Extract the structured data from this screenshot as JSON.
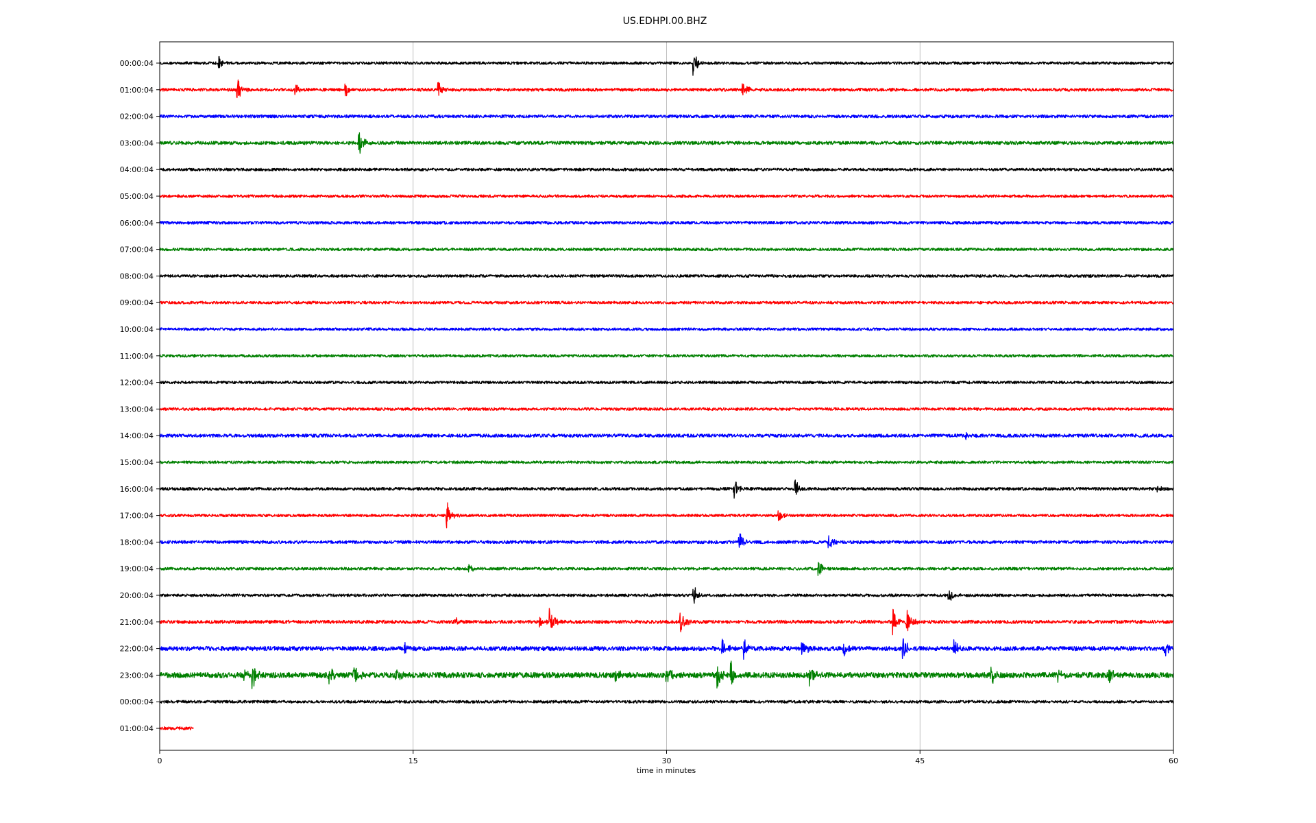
{
  "chart_data": {
    "type": "line",
    "title": "US.EDHPI.00.BHZ",
    "xlabel": "time in minutes",
    "ylabel": "",
    "xlim": [
      0,
      60
    ],
    "xticks": [
      0,
      15,
      30,
      45,
      60
    ],
    "grid_x": true,
    "grid_y": false,
    "legend": "none",
    "colors": [
      "#000000",
      "#ff0000",
      "#0000ff",
      "#008000"
    ],
    "series": [
      {
        "label": "00:00:04",
        "color": "#000000",
        "duration_min": 60,
        "noise": 0.9,
        "events": [
          {
            "t": 3.5,
            "amp": 1.6
          },
          {
            "t": 31.6,
            "amp": 3.2
          }
        ]
      },
      {
        "label": "01:00:04",
        "color": "#ff0000",
        "duration_min": 60,
        "noise": 1.0,
        "events": [
          {
            "t": 4.6,
            "amp": 3.0
          },
          {
            "t": 8.0,
            "amp": 1.6
          },
          {
            "t": 11.0,
            "amp": 2.0
          },
          {
            "t": 16.5,
            "amp": 2.6
          },
          {
            "t": 34.5,
            "amp": 2.0
          }
        ]
      },
      {
        "label": "02:00:04",
        "color": "#0000ff",
        "duration_min": 60,
        "noise": 1.0,
        "events": []
      },
      {
        "label": "03:00:04",
        "color": "#008000",
        "duration_min": 60,
        "noise": 1.1,
        "events": [
          {
            "t": 11.8,
            "amp": 3.2
          }
        ]
      },
      {
        "label": "04:00:04",
        "color": "#000000",
        "duration_min": 60,
        "noise": 0.9,
        "events": []
      },
      {
        "label": "05:00:04",
        "color": "#ff0000",
        "duration_min": 60,
        "noise": 0.9,
        "events": []
      },
      {
        "label": "06:00:04",
        "color": "#0000ff",
        "duration_min": 60,
        "noise": 1.0,
        "events": []
      },
      {
        "label": "07:00:04",
        "color": "#008000",
        "duration_min": 60,
        "noise": 0.9,
        "events": []
      },
      {
        "label": "08:00:04",
        "color": "#000000",
        "duration_min": 60,
        "noise": 0.9,
        "events": []
      },
      {
        "label": "09:00:04",
        "color": "#ff0000",
        "duration_min": 60,
        "noise": 0.9,
        "events": []
      },
      {
        "label": "10:00:04",
        "color": "#0000ff",
        "duration_min": 60,
        "noise": 0.9,
        "events": []
      },
      {
        "label": "11:00:04",
        "color": "#008000",
        "duration_min": 60,
        "noise": 0.9,
        "events": []
      },
      {
        "label": "12:00:04",
        "color": "#000000",
        "duration_min": 60,
        "noise": 0.9,
        "events": []
      },
      {
        "label": "13:00:04",
        "color": "#ff0000",
        "duration_min": 60,
        "noise": 0.9,
        "events": []
      },
      {
        "label": "14:00:04",
        "color": "#0000ff",
        "duration_min": 60,
        "noise": 1.1,
        "events": [
          {
            "t": 47.7,
            "amp": 1.2
          }
        ]
      },
      {
        "label": "15:00:04",
        "color": "#008000",
        "duration_min": 60,
        "noise": 0.9,
        "events": []
      },
      {
        "label": "16:00:04",
        "color": "#000000",
        "duration_min": 60,
        "noise": 1.0,
        "events": [
          {
            "t": 34.0,
            "amp": 3.4
          },
          {
            "t": 37.6,
            "amp": 2.6
          },
          {
            "t": 59.0,
            "amp": 1.0
          }
        ]
      },
      {
        "label": "17:00:04",
        "color": "#ff0000",
        "duration_min": 60,
        "noise": 0.9,
        "events": [
          {
            "t": 17.0,
            "amp": 3.6
          },
          {
            "t": 36.6,
            "amp": 1.8
          }
        ]
      },
      {
        "label": "18:00:04",
        "color": "#0000ff",
        "duration_min": 60,
        "noise": 1.0,
        "events": [
          {
            "t": 34.3,
            "amp": 3.0
          },
          {
            "t": 39.6,
            "amp": 2.0
          }
        ]
      },
      {
        "label": "19:00:04",
        "color": "#008000",
        "duration_min": 60,
        "noise": 0.9,
        "events": [
          {
            "t": 18.3,
            "amp": 1.4
          },
          {
            "t": 39.0,
            "amp": 2.4
          }
        ]
      },
      {
        "label": "20:00:04",
        "color": "#000000",
        "duration_min": 60,
        "noise": 0.9,
        "events": [
          {
            "t": 31.6,
            "amp": 2.8
          },
          {
            "t": 46.7,
            "amp": 1.8
          }
        ]
      },
      {
        "label": "21:00:04",
        "color": "#ff0000",
        "duration_min": 60,
        "noise": 1.1,
        "events": [
          {
            "t": 17.5,
            "amp": 1.2
          },
          {
            "t": 22.5,
            "amp": 1.4
          },
          {
            "t": 23.1,
            "amp": 3.6
          },
          {
            "t": 30.8,
            "amp": 3.4
          },
          {
            "t": 43.4,
            "amp": 3.6
          },
          {
            "t": 44.2,
            "amp": 3.6
          }
        ]
      },
      {
        "label": "22:00:04",
        "color": "#0000ff",
        "duration_min": 60,
        "noise": 1.4,
        "events": [
          {
            "t": 14.5,
            "amp": 1.2
          },
          {
            "t": 33.3,
            "amp": 2.8
          },
          {
            "t": 34.6,
            "amp": 3.0
          },
          {
            "t": 38.0,
            "amp": 2.6
          },
          {
            "t": 40.5,
            "amp": 2.0
          },
          {
            "t": 44.0,
            "amp": 3.0
          },
          {
            "t": 47.0,
            "amp": 2.0
          },
          {
            "t": 59.5,
            "amp": 2.0
          }
        ]
      },
      {
        "label": "23:00:04",
        "color": "#008000",
        "duration_min": 60,
        "noise": 1.8,
        "events": [
          {
            "t": 5.0,
            "amp": 2.0
          },
          {
            "t": 5.5,
            "amp": 3.6
          },
          {
            "t": 10.0,
            "amp": 2.6
          },
          {
            "t": 11.5,
            "amp": 3.0
          },
          {
            "t": 14.0,
            "amp": 2.0
          },
          {
            "t": 27.0,
            "amp": 2.0
          },
          {
            "t": 30.0,
            "amp": 3.0
          },
          {
            "t": 33.0,
            "amp": 3.4
          },
          {
            "t": 33.8,
            "amp": 3.4
          },
          {
            "t": 38.5,
            "amp": 2.8
          },
          {
            "t": 49.2,
            "amp": 2.6
          },
          {
            "t": 53.2,
            "amp": 2.0
          },
          {
            "t": 56.2,
            "amp": 2.0
          }
        ]
      },
      {
        "label": "00:00:04",
        "color": "#000000",
        "duration_min": 60,
        "noise": 0.9,
        "events": []
      },
      {
        "label": "01:00:04",
        "color": "#ff0000",
        "duration_min": 2,
        "noise": 1.0,
        "events": []
      }
    ]
  }
}
